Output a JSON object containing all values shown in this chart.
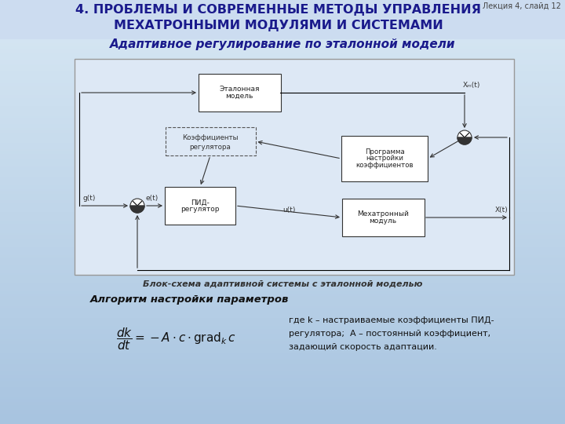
{
  "title_line1": "4. ПРОБЛЕМЫ И СОВРЕМЕННЫЕ МЕТОДЫ УПРАВЛЕНИЯ",
  "title_line2": "МЕХАТРОННЫМИ МОДУЛЯМИ И СИСТЕМАМИ",
  "slide_label": "Лекция 4, слайд 12",
  "subtitle": "Адаптивное регулирование по эталонной модели",
  "diagram_caption": "Блок-схема адаптивной системы с эталонной моделью",
  "algo_title": "Алгоритм настройки параметров",
  "title_color": "#1a1a8c",
  "subtitle_color": "#1a1a8c",
  "explanation_lines": [
    "где k – настраиваемые коэффициенты ПИД-",
    "регулятора;  А – постоянный коэффициент,",
    "задающий скорость адаптации."
  ]
}
